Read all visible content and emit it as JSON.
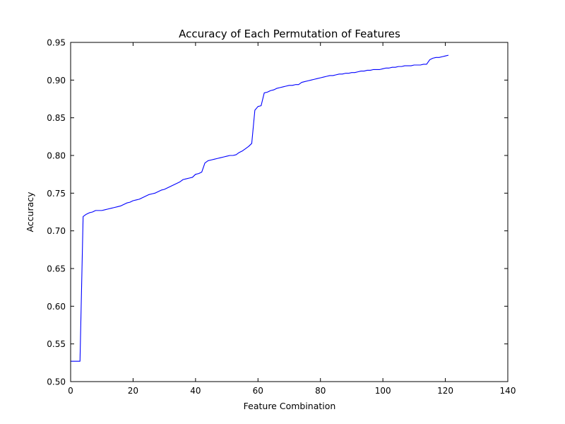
{
  "chart_data": {
    "type": "line",
    "title": "Accuracy of Each Permutation of Features",
    "xlabel": "Feature Combination",
    "ylabel": "Accuracy",
    "xlim": [
      0,
      140
    ],
    "ylim": [
      0.5,
      0.95
    ],
    "xticks": [
      "0",
      "20",
      "40",
      "60",
      "80",
      "100",
      "120",
      "140"
    ],
    "yticks": [
      "0.50",
      "0.55",
      "0.60",
      "0.65",
      "0.70",
      "0.75",
      "0.80",
      "0.85",
      "0.90",
      "0.95"
    ],
    "grid": false,
    "legend": "none",
    "series": [
      {
        "color": "#0000ff",
        "x": [
          0,
          3,
          4,
          5,
          6,
          7,
          8,
          9,
          10,
          11,
          12,
          13,
          14,
          15,
          16,
          17,
          18,
          19,
          20,
          21,
          22,
          23,
          24,
          25,
          26,
          27,
          28,
          29,
          30,
          31,
          32,
          33,
          34,
          35,
          36,
          37,
          38,
          39,
          40,
          41,
          42,
          43,
          44,
          45,
          46,
          47,
          48,
          49,
          50,
          51,
          52,
          53,
          54,
          55,
          56,
          57,
          58,
          59,
          60,
          61,
          62,
          63,
          64,
          65,
          66,
          67,
          68,
          69,
          70,
          71,
          72,
          73,
          74,
          75,
          76,
          77,
          78,
          79,
          80,
          81,
          82,
          83,
          84,
          85,
          86,
          87,
          88,
          89,
          90,
          91,
          92,
          93,
          94,
          95,
          96,
          97,
          98,
          99,
          100,
          101,
          102,
          103,
          104,
          105,
          106,
          107,
          108,
          109,
          110,
          111,
          112,
          113,
          114,
          115,
          116,
          117,
          118,
          119,
          120,
          121
        ],
        "values": [
          0.527,
          0.527,
          0.719,
          0.722,
          0.724,
          0.725,
          0.727,
          0.727,
          0.727,
          0.728,
          0.729,
          0.73,
          0.731,
          0.732,
          0.733,
          0.735,
          0.737,
          0.738,
          0.74,
          0.741,
          0.742,
          0.744,
          0.746,
          0.748,
          0.749,
          0.75,
          0.752,
          0.754,
          0.755,
          0.757,
          0.759,
          0.761,
          0.763,
          0.765,
          0.768,
          0.769,
          0.77,
          0.771,
          0.775,
          0.776,
          0.778,
          0.79,
          0.793,
          0.794,
          0.795,
          0.796,
          0.797,
          0.798,
          0.799,
          0.8,
          0.8,
          0.801,
          0.804,
          0.806,
          0.809,
          0.812,
          0.816,
          0.86,
          0.865,
          0.866,
          0.883,
          0.884,
          0.886,
          0.887,
          0.889,
          0.89,
          0.891,
          0.892,
          0.893,
          0.893,
          0.894,
          0.894,
          0.897,
          0.898,
          0.899,
          0.9,
          0.901,
          0.902,
          0.903,
          0.904,
          0.905,
          0.906,
          0.906,
          0.907,
          0.908,
          0.908,
          0.909,
          0.909,
          0.91,
          0.91,
          0.911,
          0.912,
          0.912,
          0.913,
          0.913,
          0.914,
          0.914,
          0.914,
          0.915,
          0.916,
          0.916,
          0.917,
          0.917,
          0.918,
          0.918,
          0.919,
          0.919,
          0.919,
          0.92,
          0.92,
          0.92,
          0.921,
          0.921,
          0.927,
          0.929,
          0.93,
          0.93,
          0.931,
          0.932,
          0.933
        ]
      }
    ]
  }
}
